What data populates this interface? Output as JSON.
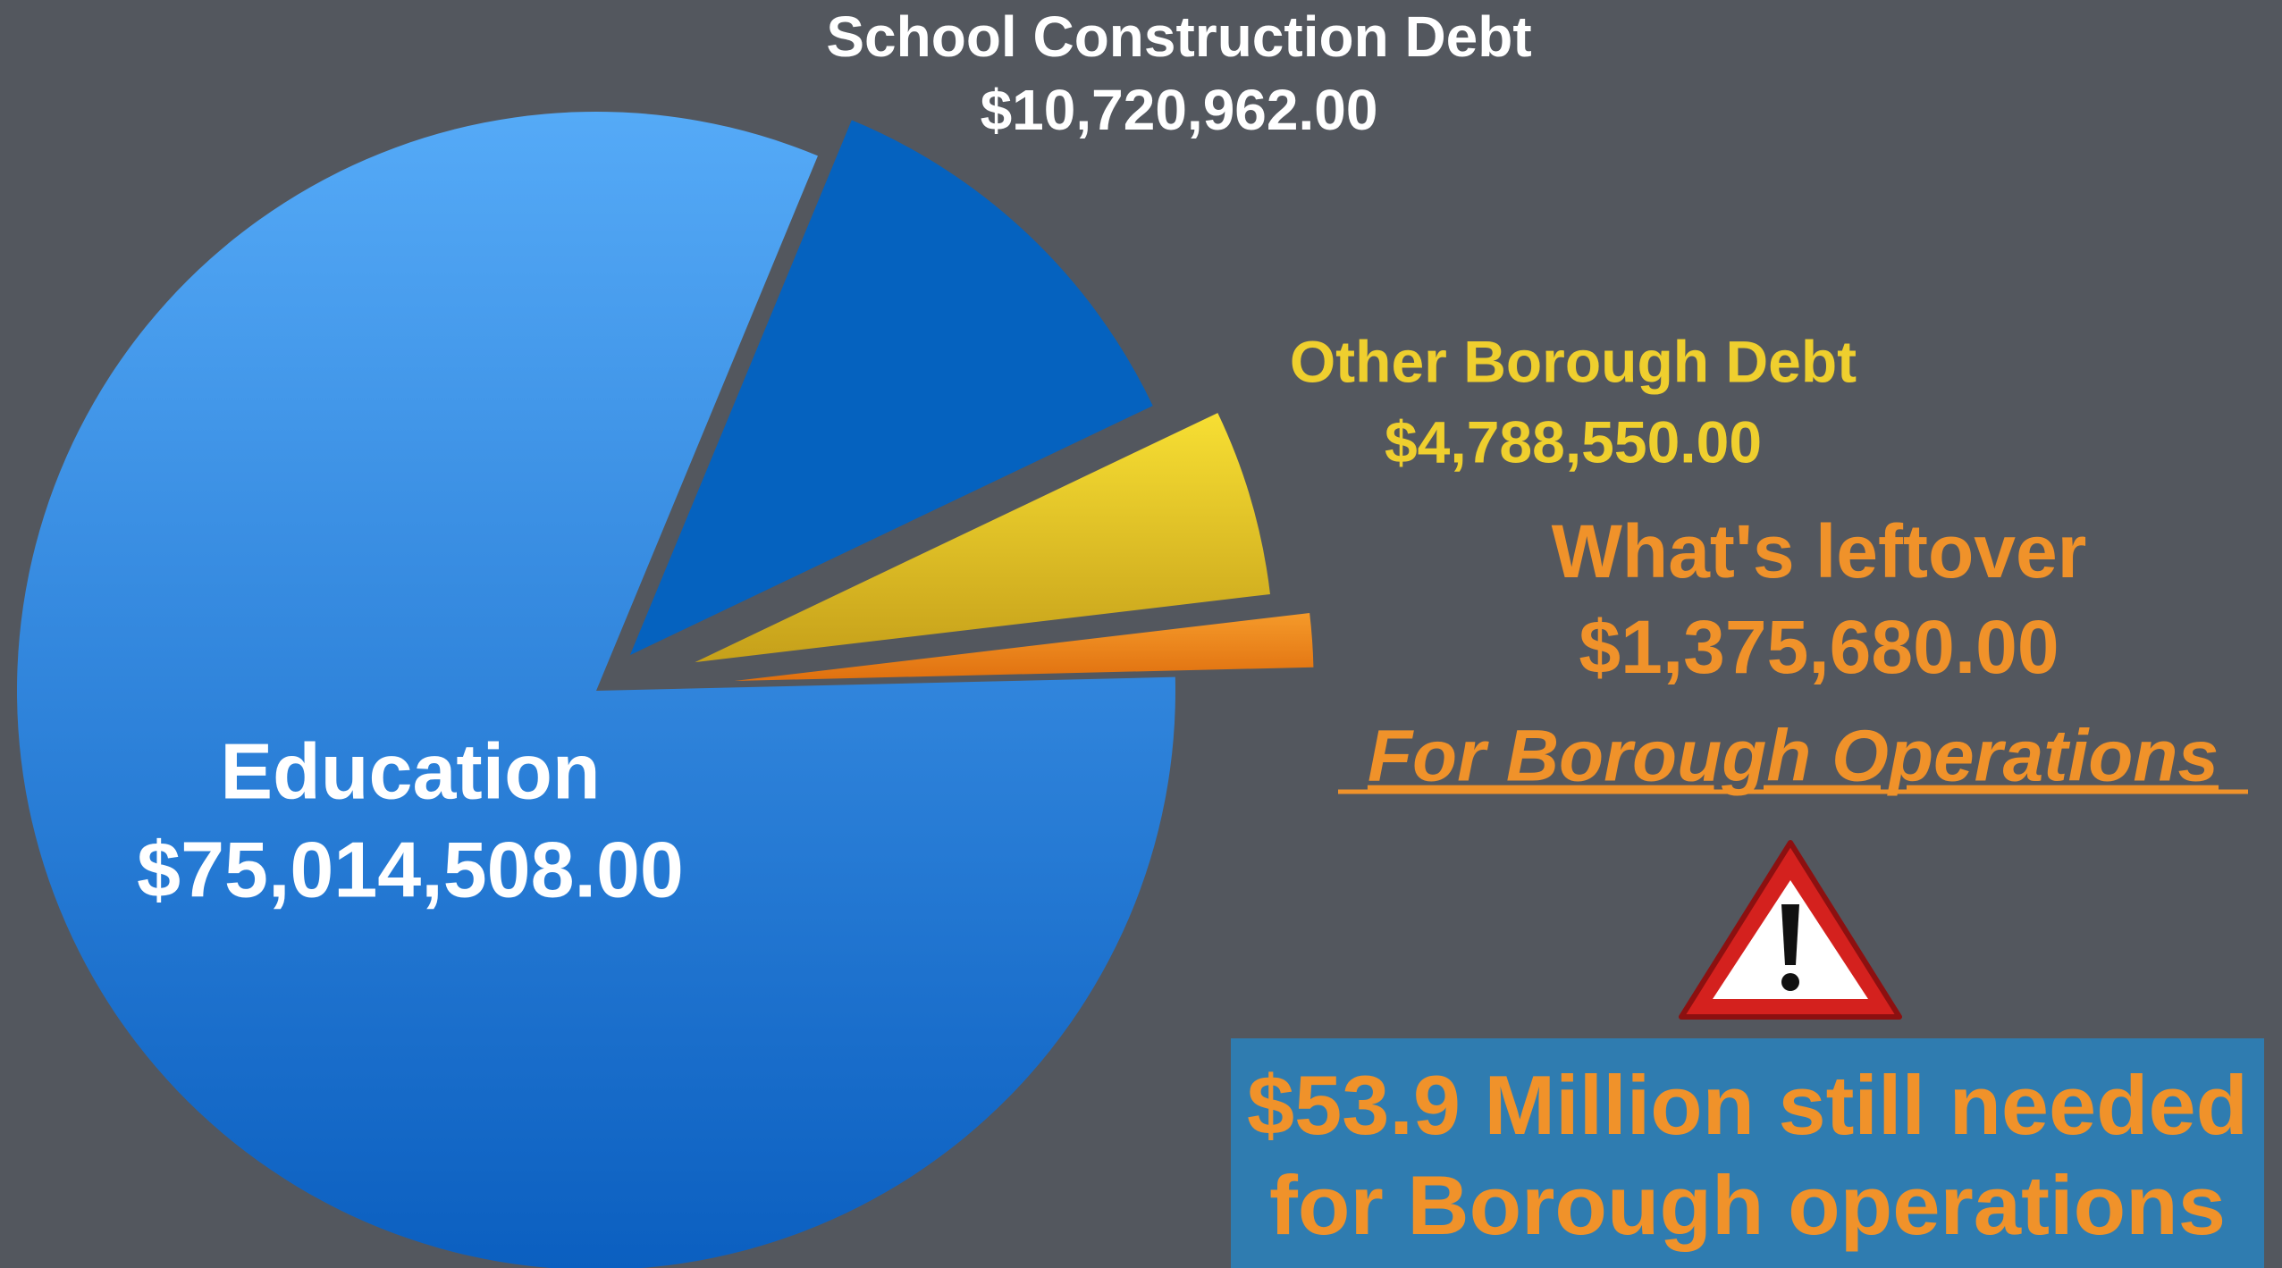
{
  "chart_data": {
    "type": "pie",
    "categories": [
      "School Construction Debt",
      "Other Borough Debt",
      "What's leftover",
      "Education"
    ],
    "values": [
      10720962,
      4788550,
      1375680,
      75014508
    ],
    "value_labels": [
      "$10,720,962.00",
      "$4,788,550.00",
      "$1,375,680.00",
      "$75,014,508.00"
    ],
    "colors": [
      "#0562bf",
      "#e8c82a",
      "#ef8620",
      "#2f8ae3"
    ],
    "annotation": "For Borough Operations",
    "callout_lines": [
      "$53.9 Million still needed",
      "for Borough operations"
    ]
  }
}
